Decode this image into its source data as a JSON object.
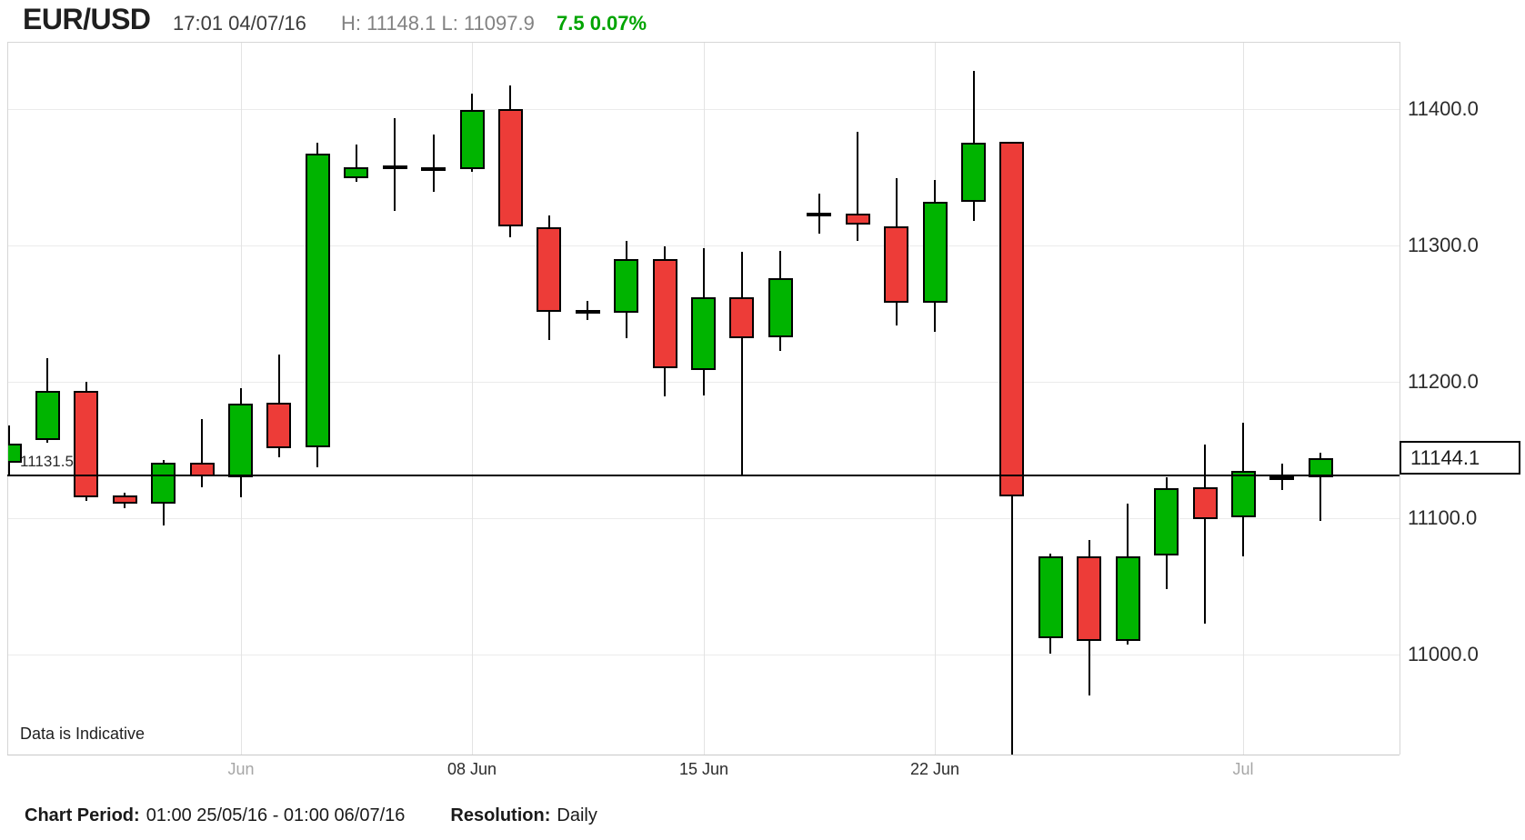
{
  "header": {
    "symbol": "EUR/USD",
    "datetime": "17:01 04/07/16",
    "high_low": "H: 11148.1 L: 11097.9",
    "change": "7.5 0.07%",
    "change_color": "#00a400"
  },
  "watermark": "Data is Indicative",
  "footer": {
    "period_label": "Chart Period:",
    "period_value": "01:00 25/05/16 - 01:00 06/07/16",
    "resolution_label": "Resolution:",
    "resolution_value": "Daily"
  },
  "chart_data": {
    "type": "candlestick",
    "symbol": "EUR/USD",
    "resolution": "Daily",
    "colors": {
      "up": "#00b400",
      "down": "#ed3c38",
      "wick": "#000000",
      "doji": "#000000"
    },
    "y_axis": {
      "range_top": 11449.3,
      "range_bottom": 10926.7,
      "ticks": [
        {
          "price": 11400,
          "label": "11400.0"
        },
        {
          "price": 11300,
          "label": "11300.0"
        },
        {
          "price": 11200,
          "label": "11200.0"
        },
        {
          "price": 11100,
          "label": "11100.0"
        },
        {
          "price": 11000,
          "label": "11000.0"
        }
      ]
    },
    "x_axis": {
      "ticks": [
        {
          "candle_index": 6,
          "label": "Jun",
          "muted": true
        },
        {
          "candle_index": 12,
          "label": "08 Jun",
          "muted": false
        },
        {
          "candle_index": 18,
          "label": "15 Jun",
          "muted": false
        },
        {
          "candle_index": 24,
          "label": "22 Jun",
          "muted": false
        },
        {
          "candle_index": 32,
          "label": "Jul",
          "muted": true
        }
      ]
    },
    "open_line": {
      "price": 11131.5,
      "label": "11131.5"
    },
    "current_price": {
      "price": 11144.1,
      "label": "11144.1"
    },
    "candles": [
      [
        11141,
        11168,
        11131,
        11155
      ],
      [
        11157,
        11217,
        11155,
        11193
      ],
      [
        11193,
        11200,
        11113,
        11115
      ],
      [
        11117,
        11119,
        11108,
        11111
      ],
      [
        11111,
        11143,
        11095,
        11141
      ],
      [
        11141,
        11173,
        11123,
        11131
      ],
      [
        11130,
        11195,
        11115,
        11184
      ],
      [
        11185,
        11220,
        11145,
        11152
      ],
      [
        11152,
        11375,
        11137,
        11367
      ],
      [
        11349,
        11374,
        11347,
        11357
      ],
      [
        11357,
        11393,
        11325,
        11357
      ],
      [
        11356,
        11381,
        11339,
        11356
      ],
      [
        11356,
        11411,
        11354,
        11399
      ],
      [
        11400,
        11417,
        11306,
        11314
      ],
      [
        11313,
        11322,
        11231,
        11251
      ],
      [
        11251,
        11259,
        11245,
        11252
      ],
      [
        11251,
        11303,
        11232,
        11290
      ],
      [
        11290,
        11299,
        11189,
        11210
      ],
      [
        11209,
        11298,
        11190,
        11262
      ],
      [
        11262,
        11295,
        11131,
        11232
      ],
      [
        11233,
        11296,
        11223,
        11276
      ],
      [
        11322,
        11338,
        11309,
        11323
      ],
      [
        11323,
        11383,
        11303,
        11315
      ],
      [
        11314,
        11349,
        11241,
        11258
      ],
      [
        11258,
        11348,
        11237,
        11332
      ],
      [
        11332,
        11428,
        11318,
        11375
      ],
      [
        11376,
        11376,
        10925,
        11116
      ],
      [
        11012,
        11074,
        11001,
        11072
      ],
      [
        11072,
        11084,
        10970,
        11010
      ],
      [
        11010,
        11111,
        11008,
        11072
      ],
      [
        11073,
        11130,
        11048,
        11122
      ],
      [
        11123,
        11154,
        11023,
        11100
      ],
      [
        11101,
        11170,
        11072,
        11135
      ],
      [
        11129,
        11140,
        11121,
        11130
      ],
      [
        11130,
        11148.1,
        11097.9,
        11144.1
      ]
    ]
  }
}
